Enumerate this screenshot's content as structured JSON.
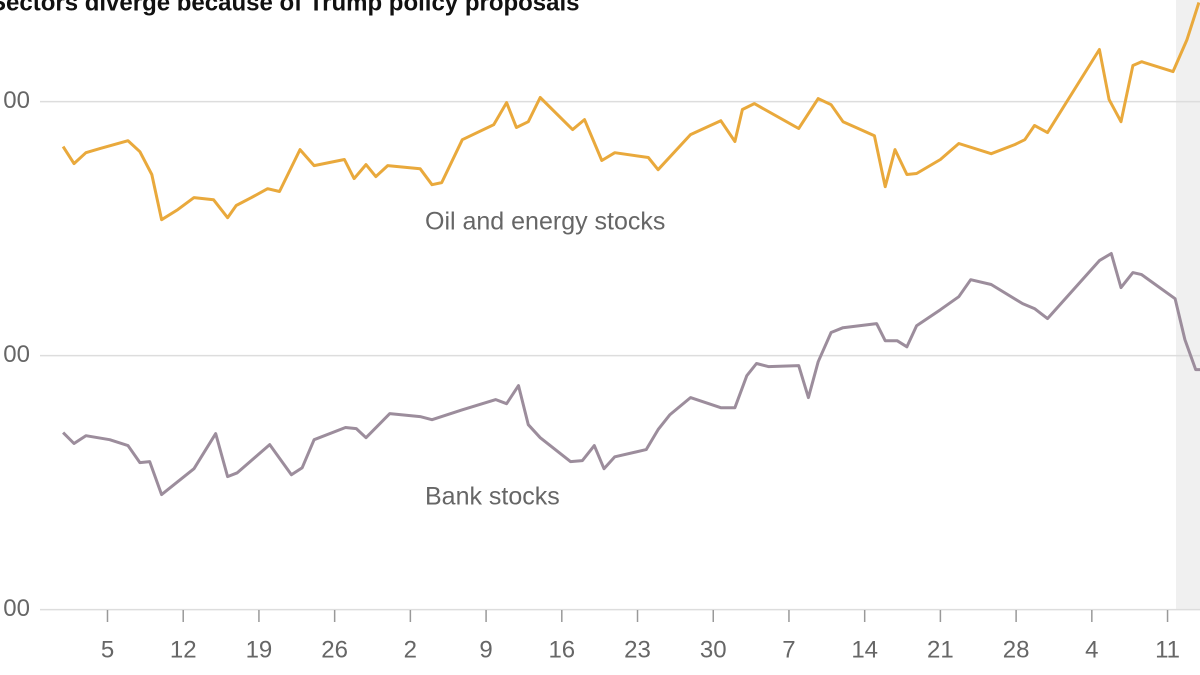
{
  "chart_data": {
    "type": "line",
    "title": "Sectors diverge because of Trump policy proposals",
    "annotations": [
      "Oil and energy stocks",
      "Bank stocks"
    ],
    "xlim": [
      -0.5,
      106
    ],
    "xticks": [
      {
        "value": 5,
        "label": "5"
      },
      {
        "value": 12,
        "label": "12"
      },
      {
        "value": 19,
        "label": "19"
      },
      {
        "value": 26,
        "label": "26"
      },
      {
        "value": 33,
        "label": "2"
      },
      {
        "value": 40,
        "label": "9"
      },
      {
        "value": 47,
        "label": "16"
      },
      {
        "value": 54,
        "label": "23"
      },
      {
        "value": 61,
        "label": "30"
      },
      {
        "value": 68,
        "label": "7"
      },
      {
        "value": 75,
        "label": "14"
      },
      {
        "value": 82,
        "label": "21"
      },
      {
        "value": 89,
        "label": "28"
      },
      {
        "value": 96,
        "label": "4"
      },
      {
        "value": 103,
        "label": "11"
      }
    ],
    "ylim": [
      92,
      340
    ],
    "yticks": [
      {
        "value": 100,
        "label": "00"
      },
      {
        "value": 200,
        "label": "00"
      },
      {
        "value": 300,
        "label": "00"
      }
    ],
    "grid": true,
    "series": [
      {
        "name": "Oil and energy stocks",
        "color": "#e9a93c",
        "x": [
          0.9,
          1.9,
          3.0,
          4.3,
          6.9,
          8.0,
          9.1,
          10.0,
          11.5,
          13.0,
          14.8,
          16.1,
          16.9,
          18.3,
          19.8,
          20.9,
          22.8,
          24.1,
          26.9,
          27.8,
          28.9,
          29.8,
          30.9,
          33.9,
          35.0,
          35.9,
          37.8,
          40.7,
          41.9,
          42.8,
          43.9,
          45.0,
          48.0,
          49.1,
          50.7,
          51.9,
          55.0,
          55.9,
          58.9,
          61.7,
          63.0,
          63.7,
          64.8,
          68.9,
          70.7,
          71.9,
          73.0,
          75.9,
          76.9,
          77.8,
          78.9,
          79.8,
          82.0,
          83.7,
          86.7,
          88.9,
          89.8,
          90.7,
          91.9,
          96.7,
          97.6,
          98.7,
          99.8,
          100.6,
          103.5,
          104.8,
          105.9
        ],
        "values": [
          282.3,
          275.6,
          279.9,
          281.5,
          284.6,
          280.3,
          271.3,
          253.5,
          257.5,
          262.2,
          261.4,
          254.3,
          259.1,
          262.2,
          265.7,
          264.6,
          281.1,
          274.8,
          277.2,
          269.7,
          275.2,
          270.5,
          274.8,
          273.6,
          267.3,
          268.1,
          285.0,
          290.9,
          299.6,
          289.8,
          292.1,
          301.6,
          289.0,
          292.9,
          276.8,
          279.9,
          278.0,
          273.2,
          287.0,
          292.5,
          284.3,
          296.9,
          299.2,
          289.4,
          301.2,
          298.8,
          292.1,
          286.6,
          266.5,
          281.1,
          271.3,
          271.7,
          277.2,
          283.5,
          279.5,
          283.1,
          285.0,
          290.6,
          287.8,
          320.5,
          300.8,
          292.1,
          314.2,
          315.7,
          311.8,
          324.4,
          339
        ]
      },
      {
        "name": "Bank stocks",
        "color": "#9c8d9c",
        "x": [
          0.9,
          1.9,
          3.0,
          5.2,
          6.9,
          8.0,
          8.9,
          10.0,
          13.0,
          15.0,
          16.1,
          17.0,
          20.0,
          22.0,
          23.0,
          24.1,
          27.0,
          28.0,
          28.9,
          31.1,
          33.9,
          35.0,
          37.8,
          40.9,
          41.9,
          43.0,
          43.9,
          45.0,
          47.8,
          48.9,
          50.0,
          50.9,
          51.9,
          54.8,
          55.9,
          57.0,
          58.9,
          61.7,
          63.0,
          64.1,
          65.0,
          66.1,
          68.9,
          69.8,
          70.7,
          71.9,
          73.0,
          76.1,
          76.9,
          78.0,
          78.9,
          79.8,
          82.0,
          83.7,
          84.8,
          86.7,
          89.6,
          90.7,
          91.9,
          96.7,
          97.8,
          98.7,
          99.8,
          100.6,
          103.7,
          104.6,
          105.6,
          106
        ],
        "values": [
          169.7,
          165.4,
          168.5,
          166.9,
          164.6,
          157.9,
          158.3,
          145.3,
          155.5,
          169.3,
          152.4,
          153.9,
          165.0,
          153.1,
          155.9,
          166.9,
          171.7,
          171.3,
          167.7,
          177.2,
          176.0,
          174.8,
          178.7,
          182.7,
          181.1,
          188.2,
          172.8,
          167.7,
          158.3,
          158.7,
          164.6,
          155.5,
          160.2,
          163.0,
          170.9,
          176.8,
          183.5,
          179.5,
          179.5,
          192.1,
          196.9,
          195.7,
          196.1,
          183.5,
          197.6,
          209.1,
          211.0,
          212.6,
          205.9,
          205.9,
          203.5,
          211.8,
          218.1,
          223.2,
          229.9,
          228.0,
          220.5,
          218.5,
          214.6,
          237.4,
          240.2,
          226.8,
          232.7,
          231.9,
          222.4,
          206.3,
          194.5,
          194.5
        ]
      }
    ]
  }
}
